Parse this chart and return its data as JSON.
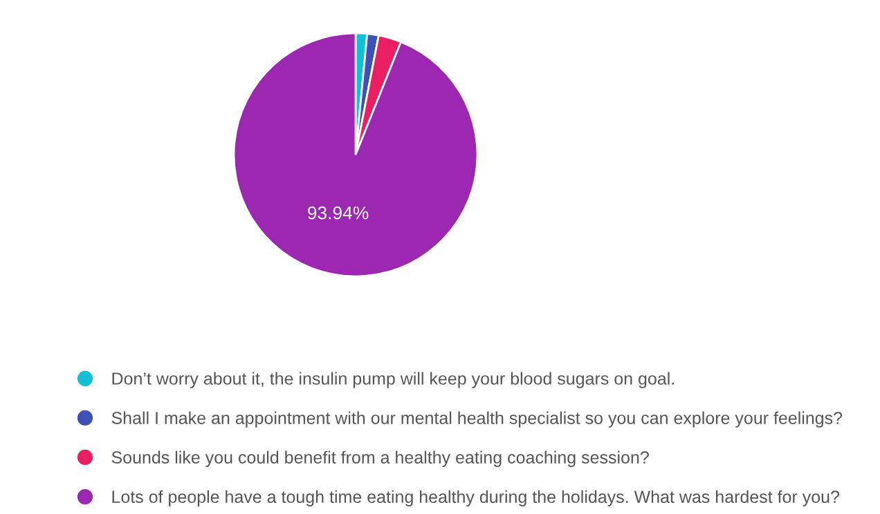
{
  "chart_data": {
    "type": "pie",
    "categories": [
      "Don’t worry about it, the insulin pump will keep your blood sugars on goal.",
      "Shall I make an appointment with our mental health specialist so you can explore your feelings?",
      "Sounds like you could benefit from a healthy eating coaching session?",
      "Lots of people have a tough time eating healthy during the holidays. What was hardest for you?"
    ],
    "values": [
      1.52,
      1.52,
      3.03,
      93.94
    ],
    "colors": [
      "#12c0d6",
      "#3f51b5",
      "#e91e63",
      "#9c27b0"
    ],
    "value_labels": [
      null,
      null,
      null,
      "93.94%"
    ],
    "legend": "bottom"
  }
}
